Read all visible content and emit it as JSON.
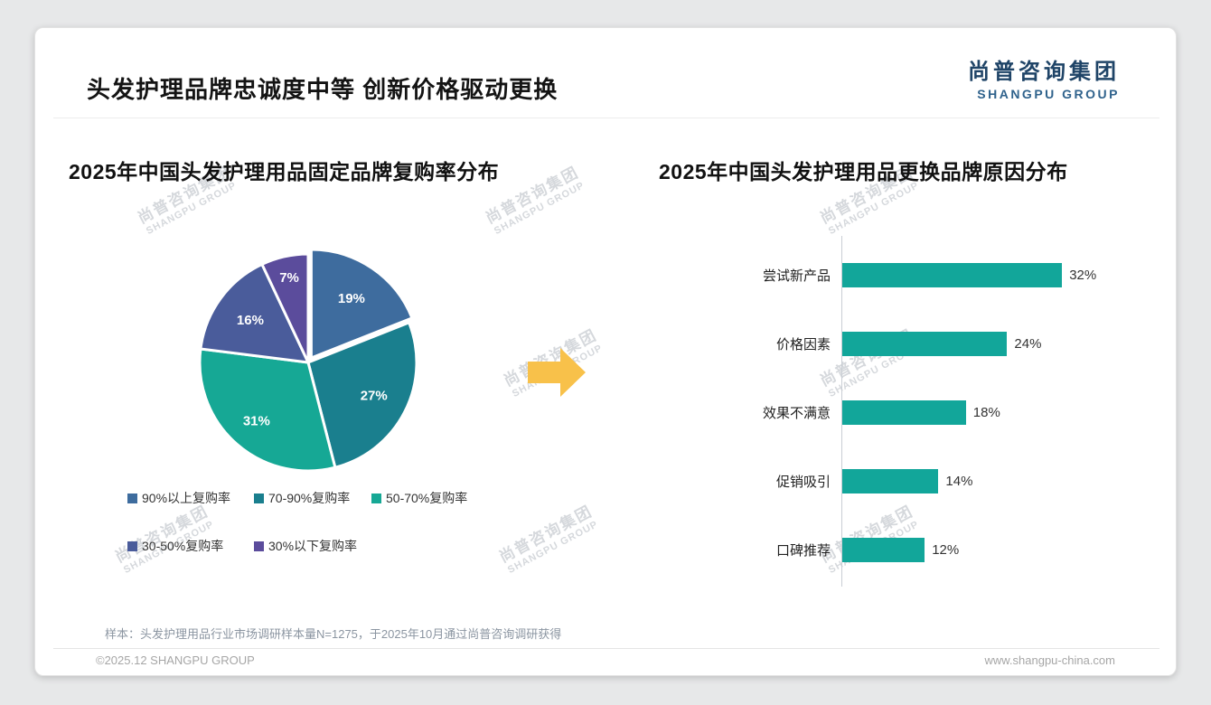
{
  "page": {
    "header_title": "头发护理品牌忠诚度中等 创新价格驱动更换",
    "logo": {
      "cn": "尚普咨询集团",
      "en": "SHANGPU GROUP"
    },
    "watermark": {
      "cn": "尚普咨询集团",
      "en": "SHANGPU GROUP"
    },
    "footer": {
      "sample_note": "样本：头发护理用品行业市场调研样本量N=1275，于2025年10月通过尚普咨询调研获得",
      "copyright": "©2025.12 SHANGPU GROUP",
      "website": "www.shangpu-china.com"
    }
  },
  "colors": {
    "brand_navy": "#1f4467",
    "accent_arrow": "#f8c14a",
    "bar_teal": "#12a69a"
  },
  "chart_data": [
    {
      "type": "pie",
      "title": "2025年中国头发护理用品固定品牌复购率分布",
      "labels": [
        "90%以上复购率",
        "70-90%复购率",
        "50-70%复购率",
        "30-50%复购率",
        "30%以下复购率"
      ],
      "values": [
        19,
        27,
        31,
        16,
        7
      ],
      "unit": "%",
      "colors": [
        "#3e6c9e",
        "#1a7f8e",
        "#16a895",
        "#4a5c9b",
        "#5b4c9c"
      ],
      "legend_position": "bottom",
      "data_labels": [
        "19%",
        "27%",
        "31%",
        "16%",
        "7%"
      ]
    },
    {
      "type": "bar",
      "orientation": "horizontal",
      "title": "2025年中国头发护理用品更换品牌原因分布",
      "categories": [
        "尝试新产品",
        "价格因素",
        "效果不满意",
        "促销吸引",
        "口碑推荐"
      ],
      "values": [
        32,
        24,
        18,
        14,
        12
      ],
      "unit": "%",
      "bar_color": "#12a69a",
      "xlim": [
        0,
        35
      ],
      "grid": false,
      "value_labels": [
        "32%",
        "24%",
        "18%",
        "14%",
        "12%"
      ]
    }
  ]
}
